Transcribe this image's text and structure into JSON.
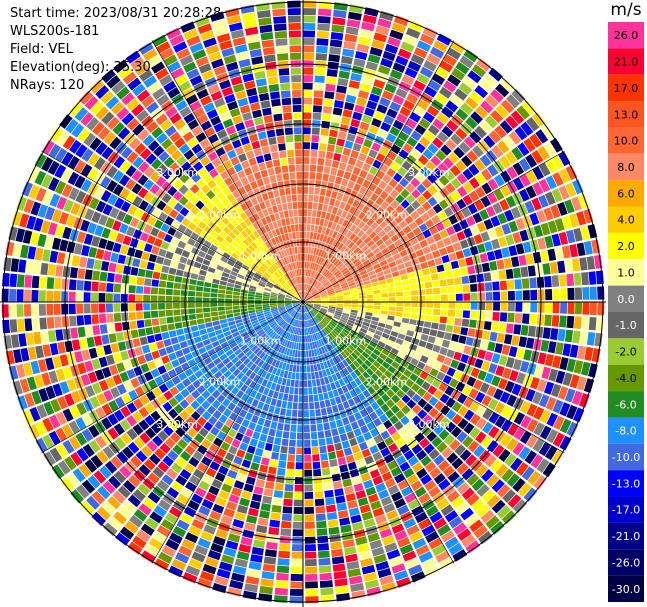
{
  "header": {
    "start_time": "Start time: 2023/08/31 20:28:28",
    "instrument": "WLS200s-181",
    "field": "Field: VEL",
    "elevation": "Elevation(deg): 35.30",
    "nrays": "NRays: 120"
  },
  "range_rings": [
    {
      "label": "1.00km"
    },
    {
      "label": "2.00km"
    },
    {
      "label": "3.00km"
    }
  ],
  "colorbar": {
    "unit": "m/s",
    "bins": [
      {
        "label": "26.0",
        "color": "#ff3399"
      },
      {
        "label": "21.0",
        "color": "#ff0033"
      },
      {
        "label": "17.0",
        "color": "#ff3300"
      },
      {
        "label": "13.0",
        "color": "#ff5522"
      },
      {
        "label": "10.0",
        "color": "#ff6633"
      },
      {
        "label": "8.0",
        "color": "#ff8866"
      },
      {
        "label": "6.0",
        "color": "#ffaa00"
      },
      {
        "label": "4.0",
        "color": "#ffcc00"
      },
      {
        "label": "2.0",
        "color": "#ffff00"
      },
      {
        "label": "1.0",
        "color": "#ffff99"
      },
      {
        "label": "0.0",
        "color": "#808080"
      },
      {
        "label": "-1.0",
        "color": "#666666"
      },
      {
        "label": "-2.0",
        "color": "#99cc33"
      },
      {
        "label": "-4.0",
        "color": "#669900"
      },
      {
        "label": "-6.0",
        "color": "#228b22"
      },
      {
        "label": "-8.0",
        "color": "#1e90ff"
      },
      {
        "label": "-10.0",
        "color": "#4169e1"
      },
      {
        "label": "-13.0",
        "color": "#0000ff"
      },
      {
        "label": "-17.0",
        "color": "#0000cc"
      },
      {
        "label": "-21.0",
        "color": "#000088"
      },
      {
        "label": "-26.0",
        "color": "#000066"
      },
      {
        "label": "-30.0",
        "color": "#000044"
      }
    ]
  }
}
